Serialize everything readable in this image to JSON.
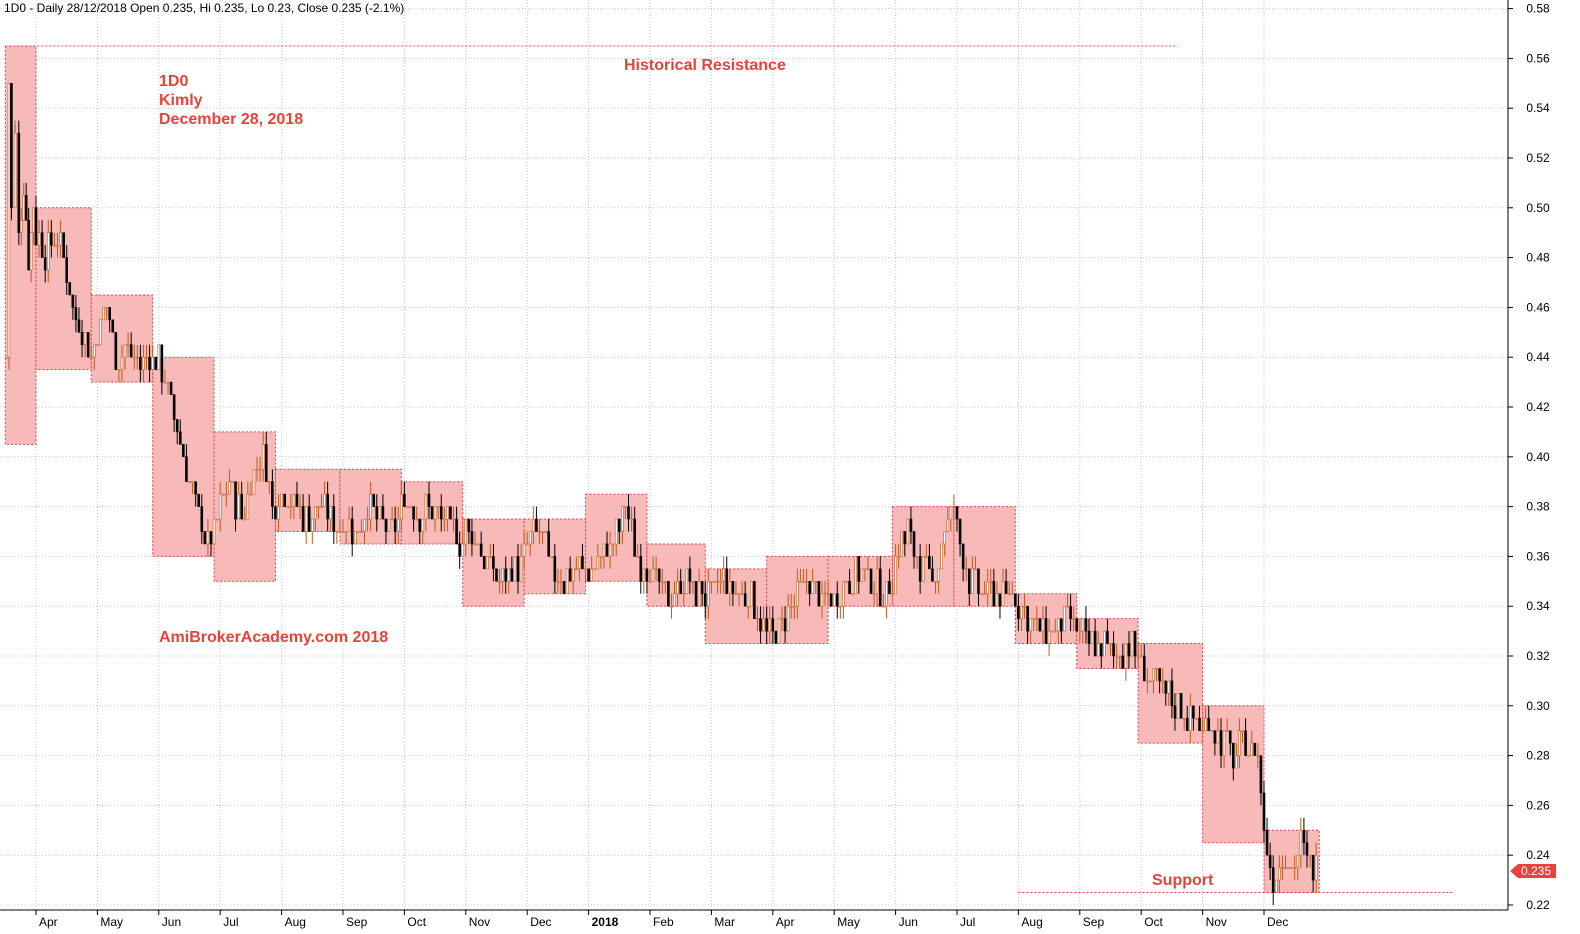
{
  "header": {
    "text": "1D0 - Daily 28/12/2018 Open 0.235, Hi 0.235, Lo 0.23, Close 0.235 (-2.1%)"
  },
  "annotations": {
    "symbol": "1D0",
    "name": "Kimly",
    "date": "December 28, 2018",
    "resistance": "Historical Resistance",
    "support": "Support",
    "watermark": "AmiBrokerAcademy.com  2018"
  },
  "price_label": "0.235",
  "colors": {
    "annotation": "#e8433b",
    "box_fill": "#f8b9b9",
    "box_border": "#e0404a",
    "up": "#c25a1a",
    "down": "#000000",
    "grid": "#c9c9c9",
    "price_tag": "#e8433b"
  },
  "chart_data": {
    "type": "candlestick",
    "ylim": [
      0.22,
      0.58
    ],
    "yticks": [
      "0.22",
      "0.24",
      "0.26",
      "0.28",
      "0.30",
      "0.32",
      "0.34",
      "0.36",
      "0.38",
      "0.40",
      "0.42",
      "0.44",
      "0.46",
      "0.48",
      "0.50",
      "0.52",
      "0.54",
      "0.56",
      "0.58"
    ],
    "months": [
      {
        "label": "Apr",
        "x": 0.0
      },
      {
        "label": "May",
        "x": 1.0
      },
      {
        "label": "Jun",
        "x": 2.0
      },
      {
        "label": "Jul",
        "x": 3.0
      },
      {
        "label": "Aug",
        "x": 4.0
      },
      {
        "label": "Sep",
        "x": 5.0
      },
      {
        "label": "Oct",
        "x": 6.0
      },
      {
        "label": "Nov",
        "x": 7.0
      },
      {
        "label": "Dec",
        "x": 8.0
      },
      {
        "label": "2018",
        "x": 9.0,
        "bold": true
      },
      {
        "label": "Feb",
        "x": 10.0
      },
      {
        "label": "Mar",
        "x": 11.0
      },
      {
        "label": "Apr",
        "x": 12.0
      },
      {
        "label": "May",
        "x": 13.0
      },
      {
        "label": "Jun",
        "x": 14.0
      },
      {
        "label": "Jul",
        "x": 15.0
      },
      {
        "label": "Aug",
        "x": 16.0
      },
      {
        "label": "Sep",
        "x": 17.0
      },
      {
        "label": "Oct",
        "x": 18.0
      },
      {
        "label": "Nov",
        "x": 19.0
      },
      {
        "label": "Dec",
        "x": 20.0
      }
    ],
    "boxes": [
      {
        "x0": -0.5,
        "x1": 0.0,
        "lo": 0.405,
        "hi": 0.565
      },
      {
        "x0": 0.0,
        "x1": 0.9,
        "lo": 0.435,
        "hi": 0.5
      },
      {
        "x0": 0.9,
        "x1": 1.9,
        "lo": 0.43,
        "hi": 0.465
      },
      {
        "x0": 1.9,
        "x1": 2.9,
        "lo": 0.36,
        "hi": 0.44
      },
      {
        "x0": 2.9,
        "x1": 3.9,
        "lo": 0.35,
        "hi": 0.41
      },
      {
        "x0": 3.9,
        "x1": 4.95,
        "lo": 0.37,
        "hi": 0.395
      },
      {
        "x0": 4.95,
        "x1": 5.95,
        "lo": 0.365,
        "hi": 0.395
      },
      {
        "x0": 5.95,
        "x1": 6.95,
        "lo": 0.365,
        "hi": 0.39
      },
      {
        "x0": 6.95,
        "x1": 7.95,
        "lo": 0.34,
        "hi": 0.375
      },
      {
        "x0": 7.95,
        "x1": 8.95,
        "lo": 0.345,
        "hi": 0.375
      },
      {
        "x0": 8.95,
        "x1": 9.95,
        "lo": 0.35,
        "hi": 0.385
      },
      {
        "x0": 9.95,
        "x1": 10.9,
        "lo": 0.34,
        "hi": 0.365
      },
      {
        "x0": 10.9,
        "x1": 11.9,
        "lo": 0.325,
        "hi": 0.355
      },
      {
        "x0": 11.9,
        "x1": 12.9,
        "lo": 0.325,
        "hi": 0.36
      },
      {
        "x0": 12.9,
        "x1": 13.95,
        "lo": 0.34,
        "hi": 0.36
      },
      {
        "x0": 13.95,
        "x1": 14.95,
        "lo": 0.34,
        "hi": 0.38
      },
      {
        "x0": 14.95,
        "x1": 15.95,
        "lo": 0.34,
        "hi": 0.38
      },
      {
        "x0": 15.95,
        "x1": 16.95,
        "lo": 0.325,
        "hi": 0.345
      },
      {
        "x0": 16.95,
        "x1": 17.95,
        "lo": 0.315,
        "hi": 0.335
      },
      {
        "x0": 17.95,
        "x1": 19.0,
        "lo": 0.285,
        "hi": 0.325
      },
      {
        "x0": 19.0,
        "x1": 20.0,
        "lo": 0.245,
        "hi": 0.3
      },
      {
        "x0": 20.0,
        "x1": 20.9,
        "lo": 0.225,
        "hi": 0.25
      }
    ],
    "resistance": {
      "value": 0.565,
      "x0": -0.5,
      "x1": 18.6
    },
    "support": {
      "value": 0.225,
      "x0": 16.0,
      "x1": 23.1
    },
    "close_path": [
      [
        -0.48,
        0.44
      ],
      [
        -0.44,
        0.55
      ],
      [
        -0.4,
        0.5
      ],
      [
        -0.34,
        0.53
      ],
      [
        -0.28,
        0.49
      ],
      [
        -0.2,
        0.51
      ],
      [
        -0.12,
        0.48
      ],
      [
        -0.04,
        0.5
      ],
      [
        0.0,
        0.49
      ],
      [
        0.15,
        0.48
      ],
      [
        0.3,
        0.49
      ],
      [
        0.45,
        0.48
      ],
      [
        0.6,
        0.46
      ],
      [
        0.75,
        0.45
      ],
      [
        0.9,
        0.44
      ],
      [
        1.0,
        0.45
      ],
      [
        1.15,
        0.46
      ],
      [
        1.3,
        0.44
      ],
      [
        1.5,
        0.445
      ],
      [
        1.7,
        0.435
      ],
      [
        1.9,
        0.44
      ],
      [
        2.0,
        0.44
      ],
      [
        2.2,
        0.42
      ],
      [
        2.4,
        0.4
      ],
      [
        2.6,
        0.38
      ],
      [
        2.8,
        0.365
      ],
      [
        2.9,
        0.37
      ],
      [
        3.0,
        0.38
      ],
      [
        3.15,
        0.39
      ],
      [
        3.35,
        0.375
      ],
      [
        3.5,
        0.39
      ],
      [
        3.7,
        0.4
      ],
      [
        3.85,
        0.38
      ],
      [
        4.0,
        0.385
      ],
      [
        4.2,
        0.38
      ],
      [
        4.4,
        0.375
      ],
      [
        4.6,
        0.38
      ],
      [
        4.8,
        0.375
      ],
      [
        4.95,
        0.37
      ],
      [
        5.0,
        0.375
      ],
      [
        5.2,
        0.37
      ],
      [
        5.4,
        0.38
      ],
      [
        5.6,
        0.375
      ],
      [
        5.8,
        0.37
      ],
      [
        5.95,
        0.38
      ],
      [
        6.0,
        0.385
      ],
      [
        6.2,
        0.375
      ],
      [
        6.4,
        0.38
      ],
      [
        6.6,
        0.375
      ],
      [
        6.8,
        0.37
      ],
      [
        6.95,
        0.365
      ],
      [
        7.0,
        0.37
      ],
      [
        7.2,
        0.365
      ],
      [
        7.4,
        0.355
      ],
      [
        7.6,
        0.35
      ],
      [
        7.8,
        0.355
      ],
      [
        7.95,
        0.36
      ],
      [
        8.0,
        0.365
      ],
      [
        8.2,
        0.37
      ],
      [
        8.4,
        0.355
      ],
      [
        8.6,
        0.35
      ],
      [
        8.8,
        0.355
      ],
      [
        8.95,
        0.355
      ],
      [
        9.0,
        0.355
      ],
      [
        9.2,
        0.36
      ],
      [
        9.4,
        0.365
      ],
      [
        9.6,
        0.38
      ],
      [
        9.8,
        0.36
      ],
      [
        9.95,
        0.355
      ],
      [
        10.0,
        0.355
      ],
      [
        10.2,
        0.345
      ],
      [
        10.4,
        0.345
      ],
      [
        10.6,
        0.35
      ],
      [
        10.8,
        0.345
      ],
      [
        10.9,
        0.345
      ],
      [
        11.0,
        0.345
      ],
      [
        11.2,
        0.35
      ],
      [
        11.4,
        0.345
      ],
      [
        11.6,
        0.345
      ],
      [
        11.8,
        0.335
      ],
      [
        11.9,
        0.33
      ],
      [
        12.0,
        0.33
      ],
      [
        12.2,
        0.335
      ],
      [
        12.4,
        0.345
      ],
      [
        12.6,
        0.35
      ],
      [
        12.8,
        0.34
      ],
      [
        12.9,
        0.345
      ],
      [
        13.0,
        0.345
      ],
      [
        13.2,
        0.35
      ],
      [
        13.4,
        0.355
      ],
      [
        13.6,
        0.35
      ],
      [
        13.8,
        0.345
      ],
      [
        13.95,
        0.35
      ],
      [
        14.0,
        0.36
      ],
      [
        14.2,
        0.37
      ],
      [
        14.4,
        0.355
      ],
      [
        14.6,
        0.35
      ],
      [
        14.8,
        0.37
      ],
      [
        14.95,
        0.38
      ],
      [
        15.0,
        0.37
      ],
      [
        15.2,
        0.35
      ],
      [
        15.4,
        0.345
      ],
      [
        15.6,
        0.345
      ],
      [
        15.8,
        0.345
      ],
      [
        15.95,
        0.345
      ],
      [
        16.0,
        0.34
      ],
      [
        16.2,
        0.335
      ],
      [
        16.4,
        0.33
      ],
      [
        16.6,
        0.33
      ],
      [
        16.8,
        0.335
      ],
      [
        16.95,
        0.33
      ],
      [
        17.0,
        0.33
      ],
      [
        17.2,
        0.325
      ],
      [
        17.4,
        0.325
      ],
      [
        17.6,
        0.32
      ],
      [
        17.8,
        0.325
      ],
      [
        17.95,
        0.32
      ],
      [
        18.0,
        0.315
      ],
      [
        18.2,
        0.31
      ],
      [
        18.4,
        0.305
      ],
      [
        18.6,
        0.3
      ],
      [
        18.8,
        0.295
      ],
      [
        19.0,
        0.29
      ],
      [
        19.1,
        0.295
      ],
      [
        19.3,
        0.285
      ],
      [
        19.5,
        0.28
      ],
      [
        19.7,
        0.285
      ],
      [
        19.9,
        0.28
      ],
      [
        20.0,
        0.25
      ],
      [
        20.15,
        0.23
      ],
      [
        20.3,
        0.24
      ],
      [
        20.45,
        0.235
      ],
      [
        20.6,
        0.245
      ],
      [
        20.75,
        0.235
      ],
      [
        20.9,
        0.235
      ]
    ]
  }
}
